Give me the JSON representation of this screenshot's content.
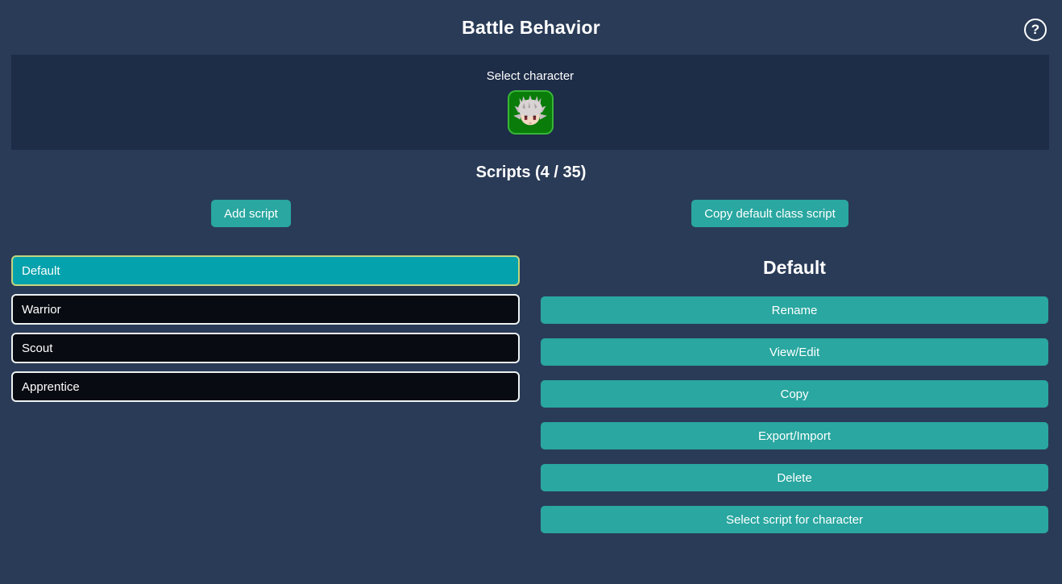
{
  "header": {
    "title": "Battle Behavior",
    "help_label": "?"
  },
  "character_section": {
    "label": "Select character",
    "portrait": "white-haired-hero-face"
  },
  "scripts_section": {
    "heading": "Scripts (4 / 35)",
    "add_button": "Add script",
    "copy_default_button": "Copy default class script"
  },
  "script_list": {
    "items": [
      {
        "label": "Default",
        "selected": true
      },
      {
        "label": "Warrior",
        "selected": false
      },
      {
        "label": "Scout",
        "selected": false
      },
      {
        "label": "Apprentice",
        "selected": false
      }
    ]
  },
  "detail_panel": {
    "title": "Default",
    "buttons": [
      "Rename",
      "View/Edit",
      "Copy",
      "Export/Import",
      "Delete",
      "Select script for character"
    ]
  },
  "colors": {
    "background": "#2a3b57",
    "strip_background": "#1d2c47",
    "button_teal": "#29a7a0",
    "selected_item": "#04a2ac",
    "selected_item_border": "#c3d57e",
    "item_background": "#080c12",
    "portrait_background": "#097c09",
    "portrait_border": "#38b438",
    "text": "#ffffff"
  }
}
